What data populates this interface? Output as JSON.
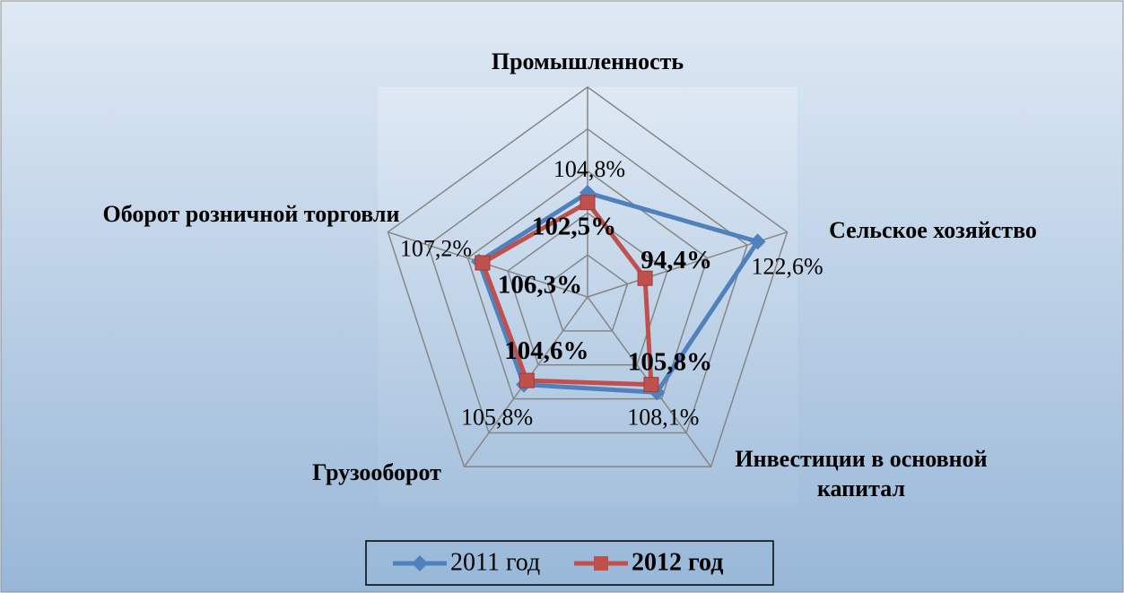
{
  "chart_data": {
    "type": "radar",
    "categories": [
      "Промышленность",
      "Сельское хозяйство",
      "Инвестиции в основной капитал",
      "Грузооборот",
      "Оборот розничной торговли"
    ],
    "series": [
      {
        "name": "2011 год",
        "color": "#4f81bd",
        "marker": "diamond",
        "values": [
          104.8,
          122.6,
          108.1,
          105.8,
          107.2
        ],
        "value_labels": [
          "104,8%",
          "122,6%",
          "108,1%",
          "105,8%",
          "107,2%"
        ]
      },
      {
        "name": "2012 год",
        "color": "#c0504d",
        "marker": "square",
        "values": [
          102.5,
          94.4,
          105.8,
          104.6,
          106.3
        ],
        "value_labels": [
          "102,5%",
          "94,4%",
          "105,8%",
          "104,6%",
          "106,3%"
        ]
      }
    ],
    "ylim": [
      80,
      130
    ],
    "yticks": [
      80,
      90,
      100,
      110,
      120,
      130
    ],
    "grid": true,
    "legend": "bottom"
  }
}
